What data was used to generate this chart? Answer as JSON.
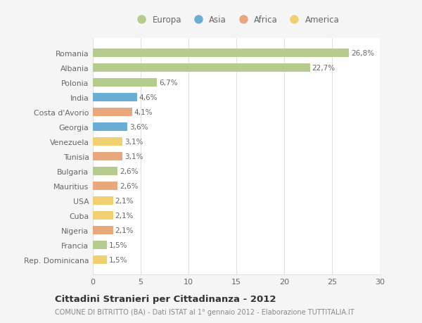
{
  "countries": [
    "Romania",
    "Albania",
    "Polonia",
    "India",
    "Costa d'Avorio",
    "Georgia",
    "Venezuela",
    "Tunisia",
    "Bulgaria",
    "Mauritius",
    "USA",
    "Cuba",
    "Nigeria",
    "Francia",
    "Rep. Dominicana"
  ],
  "values": [
    26.8,
    22.7,
    6.7,
    4.6,
    4.1,
    3.6,
    3.1,
    3.1,
    2.6,
    2.6,
    2.1,
    2.1,
    2.1,
    1.5,
    1.5
  ],
  "labels": [
    "26,8%",
    "22,7%",
    "6,7%",
    "4,6%",
    "4,1%",
    "3,6%",
    "3,1%",
    "3,1%",
    "2,6%",
    "2,6%",
    "2,1%",
    "2,1%",
    "2,1%",
    "1,5%",
    "1,5%"
  ],
  "continents": [
    "Europa",
    "Europa",
    "Europa",
    "Asia",
    "Africa",
    "Asia",
    "America",
    "Africa",
    "Europa",
    "Africa",
    "America",
    "America",
    "Africa",
    "Europa",
    "America"
  ],
  "continent_colors": {
    "Europa": "#b5cc8e",
    "Asia": "#6aaed6",
    "Africa": "#e8a87c",
    "America": "#f0d070"
  },
  "legend_order": [
    "Europa",
    "Asia",
    "Africa",
    "America"
  ],
  "title": "Cittadini Stranieri per Cittadinanza - 2012",
  "subtitle": "COMUNE DI BITRITTO (BA) - Dati ISTAT al 1° gennaio 2012 - Elaborazione TUTTITALIA.IT",
  "xlim": [
    0,
    30
  ],
  "xticks": [
    0,
    5,
    10,
    15,
    20,
    25,
    30
  ],
  "background_color": "#f5f5f5",
  "plot_bg_color": "#ffffff",
  "grid_color": "#e0e0e0",
  "text_color": "#666666",
  "title_color": "#333333",
  "subtitle_color": "#888888",
  "bar_height": 0.55
}
